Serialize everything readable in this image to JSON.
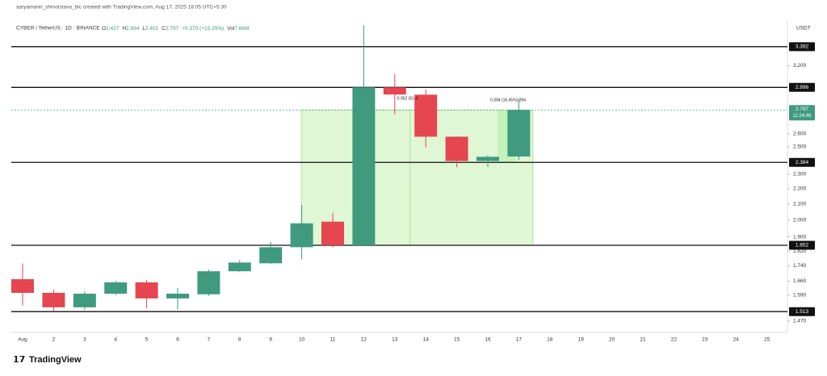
{
  "chart_data": {
    "type": "candlestick",
    "credit": "aaryamann_shrivastava_blc created with TradingView.com, Aug 17, 2025 18:05 UTC+5:30",
    "title": "CYBER / TetherUS · 1D · BINANCE",
    "ohlc_labels": [
      "O",
      "H",
      "L",
      "C"
    ],
    "ohlc_values": [
      2.427,
      2.894,
      2.401,
      2.797
    ],
    "change": "+0.370 (+15.25%)",
    "volume_label": "Vol",
    "volume": "7.66M",
    "unit": "USDT",
    "logo": "TradingView",
    "categories": [
      "Aug",
      "2",
      "3",
      "4",
      "5",
      "6",
      "7",
      "8",
      "9",
      "10",
      "11",
      "12",
      "13",
      "14",
      "15",
      "16",
      "17",
      "18",
      "19",
      "20",
      "21",
      "22",
      "23",
      "24",
      "25"
    ],
    "open": [
      1.67,
      1.602,
      1.533,
      1.598,
      1.654,
      1.575,
      1.595,
      1.711,
      1.753,
      1.841,
      1.99,
      1.852,
      2.996,
      2.93,
      2.578,
      2.394,
      2.427,
      null,
      null,
      null,
      null,
      null,
      null,
      null,
      null
    ],
    "high": [
      1.752,
      1.618,
      1.61,
      1.662,
      1.666,
      1.626,
      1.72,
      1.77,
      1.872,
      2.094,
      2.044,
      3.62,
      3.12,
      2.977,
      2.58,
      2.435,
      2.894,
      null,
      null,
      null,
      null,
      null,
      null,
      null,
      null
    ],
    "low": [
      1.541,
      1.515,
      1.52,
      1.59,
      1.529,
      1.522,
      1.587,
      1.707,
      1.75,
      1.774,
      1.84,
      1.85,
      2.76,
      2.497,
      2.349,
      2.35,
      2.401,
      null,
      null,
      null,
      null,
      null,
      null,
      null,
      null
    ],
    "close": [
      1.602,
      1.533,
      1.598,
      1.654,
      1.575,
      1.598,
      1.711,
      1.757,
      1.841,
      1.98,
      1.852,
      2.996,
      2.932,
      2.578,
      2.394,
      2.425,
      2.797,
      null,
      null,
      null,
      null,
      null,
      null,
      null,
      null
    ],
    "up_color": "#3f9a7e",
    "down_color": "#e5464f",
    "yscale": "log",
    "ylim": [
      1.42,
      3.65
    ],
    "yticks": [
      {
        "value": 3.2,
        "label": "3.200"
      },
      {
        "value": 2.6,
        "label": "2.600"
      },
      {
        "value": 2.5,
        "label": "2.500"
      },
      {
        "value": 2.3,
        "label": "2.300"
      },
      {
        "value": 2.2,
        "label": "2.200"
      },
      {
        "value": 2.1,
        "label": "2.100"
      },
      {
        "value": 2.0,
        "label": "2.000"
      },
      {
        "value": 1.9,
        "label": "1.900"
      },
      {
        "value": 1.82,
        "label": "1.820"
      },
      {
        "value": 1.74,
        "label": "1.740"
      },
      {
        "value": 1.66,
        "label": "1.660"
      },
      {
        "value": 1.59,
        "label": "1.590"
      },
      {
        "value": 1.47,
        "label": "1.470"
      }
    ],
    "levels": [
      3.392,
      2.996,
      2.384,
      1.852,
      1.513
    ],
    "last_price": 2.797,
    "countdown": "11:24:46",
    "annotations": [
      "0.952 (51.4",
      "0.394 (16.45%) 394"
    ]
  }
}
